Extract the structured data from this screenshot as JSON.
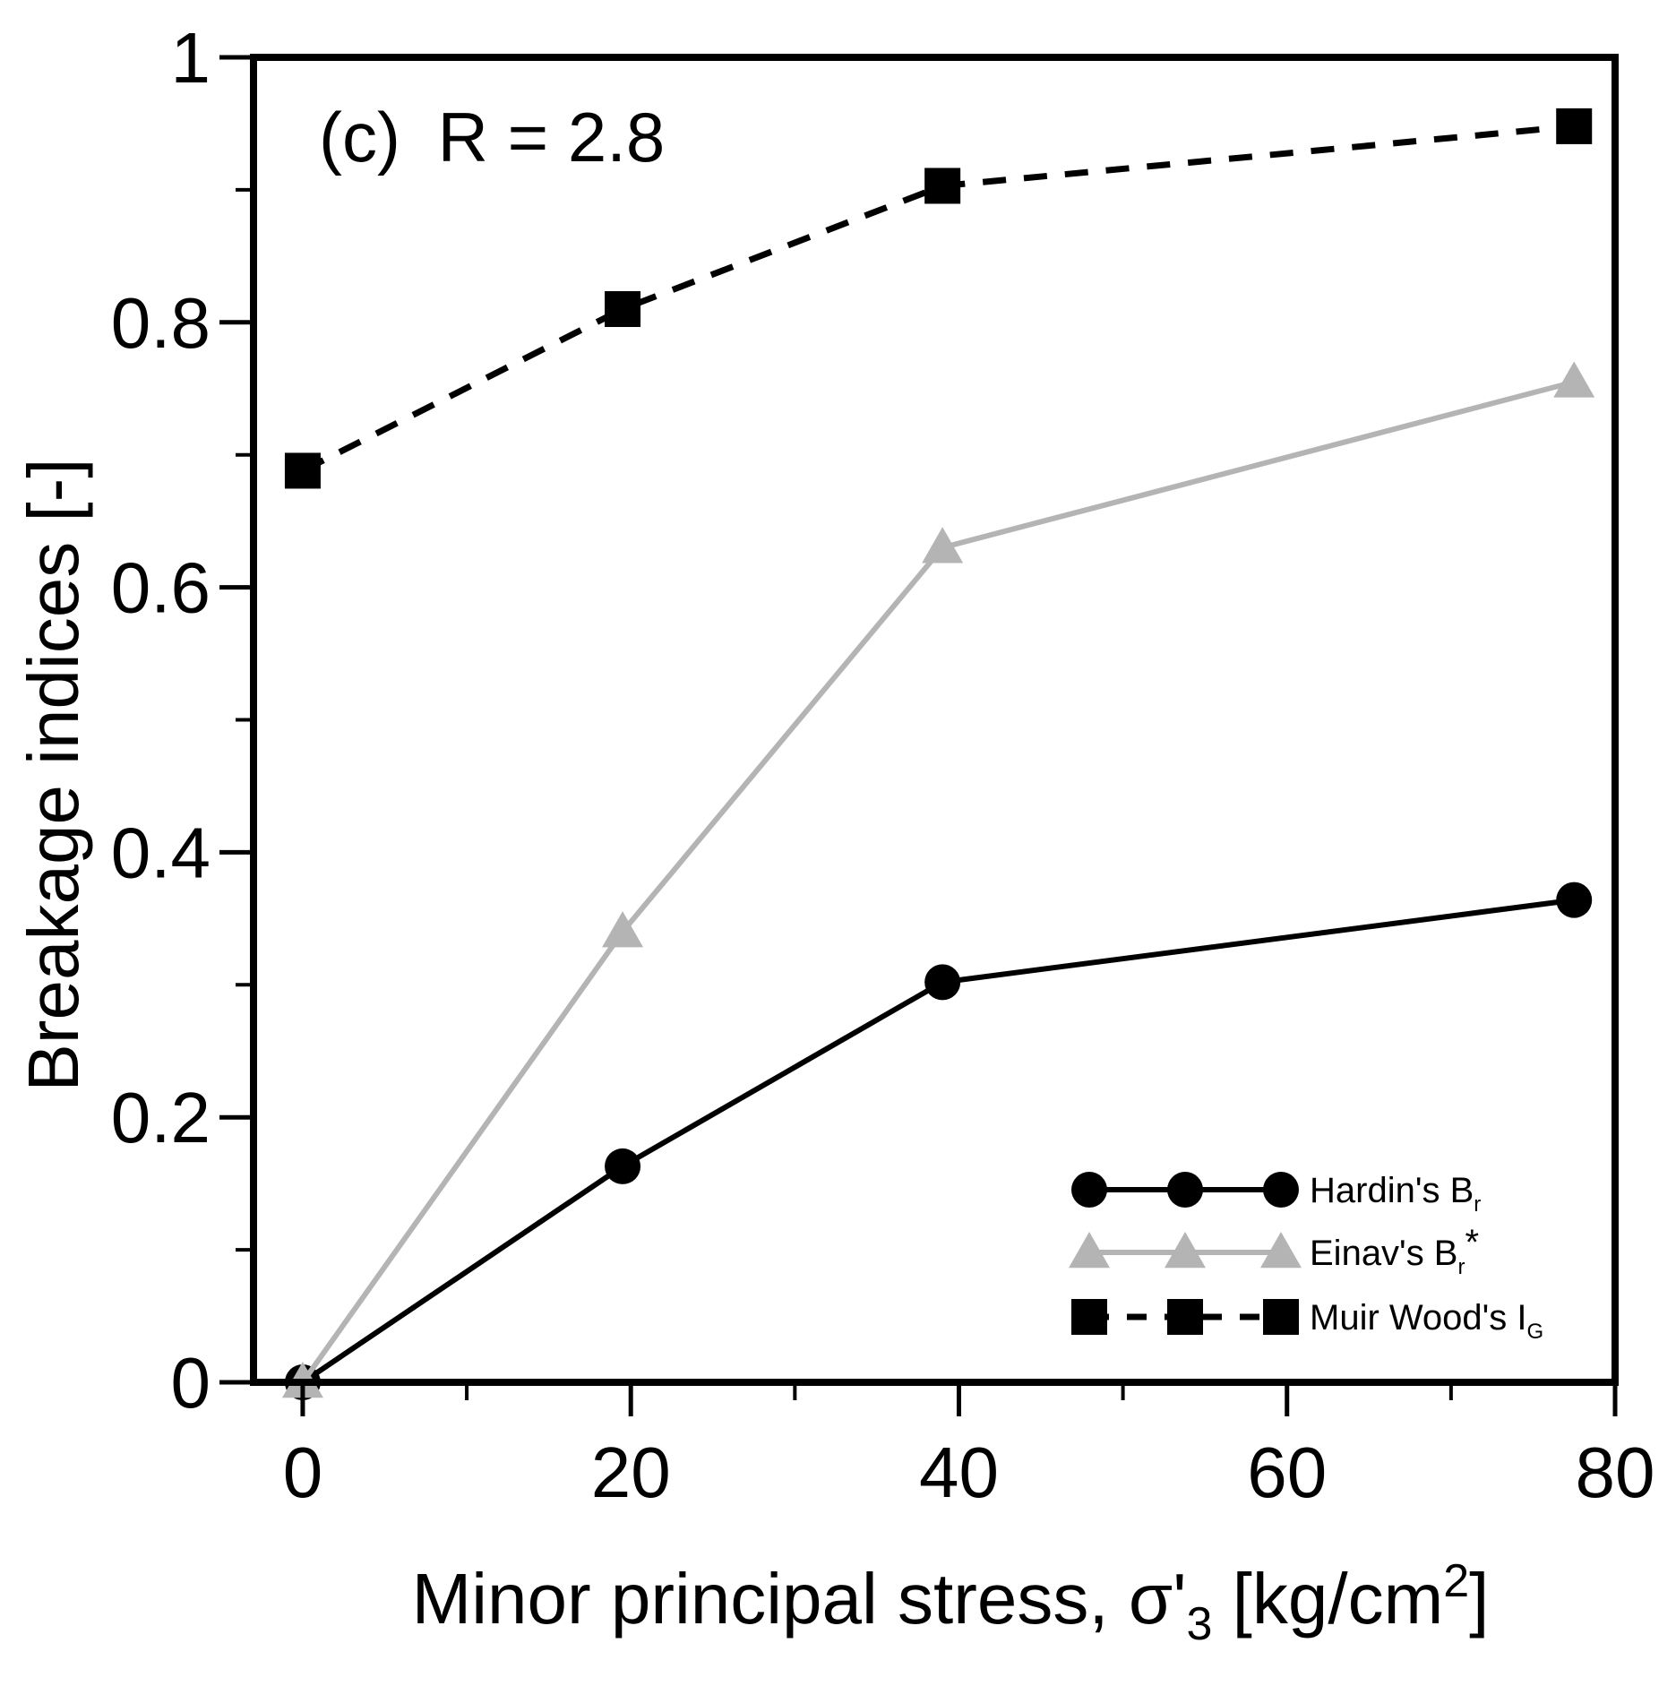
{
  "chart_data": {
    "type": "line",
    "title": "",
    "annotation": {
      "prefix": "(c)",
      "text": "R = 2.8"
    },
    "xlabel": {
      "main": "Minor principal stress, σ'",
      "sub": "3",
      "unit_pre": " [kg/cm",
      "sup": "2",
      "unit_post": "]"
    },
    "ylabel": "Breakage indices [-]",
    "xlim": [
      -3,
      80
    ],
    "ylim": [
      0,
      1
    ],
    "x_ticks": [
      0,
      20,
      40,
      60,
      80
    ],
    "x_tick_labels": [
      "0",
      "20",
      "40",
      "60",
      "80"
    ],
    "x_minor_ticks": [
      10,
      30,
      50,
      70
    ],
    "y_ticks": [
      0,
      0.2,
      0.4,
      0.6,
      0.8,
      1
    ],
    "y_tick_labels": [
      "0",
      "0.2",
      "0.4",
      "0.6",
      "0.8",
      "1"
    ],
    "y_minor_ticks": [
      0.1,
      0.3,
      0.5,
      0.7,
      0.9
    ],
    "grid": false,
    "legend_position": "bottom-right",
    "series": [
      {
        "name": "Hardin's Br",
        "legend_base": "Hardin's B",
        "legend_sub": "r",
        "legend_suffix": "",
        "marker": "circle",
        "color": "#000000",
        "dashed": false,
        "x": [
          0,
          19.5,
          39,
          77.5
        ],
        "values": [
          0,
          0.163,
          0.302,
          0.364
        ]
      },
      {
        "name": "Einav's Br*",
        "legend_base": "Einav's B",
        "legend_sub": "r",
        "legend_suffix": "*",
        "marker": "triangle",
        "color": "#b4b4b4",
        "dashed": false,
        "x": [
          0,
          19.5,
          39,
          77.5
        ],
        "values": [
          0,
          0.34,
          0.63,
          0.755
        ]
      },
      {
        "name": "Muir Wood's IG",
        "legend_base": "Muir Wood's I",
        "legend_sub": "G",
        "legend_suffix": "",
        "marker": "square",
        "color": "#000000",
        "dashed": true,
        "x": [
          0,
          19.5,
          39,
          77.5
        ],
        "values": [
          0.688,
          0.81,
          0.903,
          0.948
        ]
      }
    ]
  }
}
